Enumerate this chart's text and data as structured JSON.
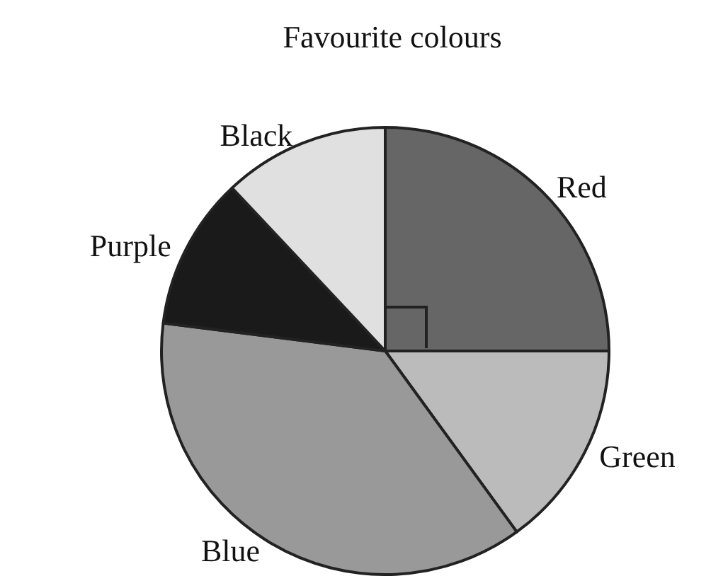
{
  "chart_data": {
    "type": "pie",
    "title": "Favourite colours",
    "categories": [
      "Red",
      "Green",
      "Blue",
      "Purple",
      "Black"
    ],
    "values": [
      25,
      15,
      37,
      11,
      12
    ],
    "colors": [
      "#666666",
      "#bbbbbb",
      "#999999",
      "#1a1a1a",
      "#e0e0e0"
    ],
    "legend": false
  }
}
